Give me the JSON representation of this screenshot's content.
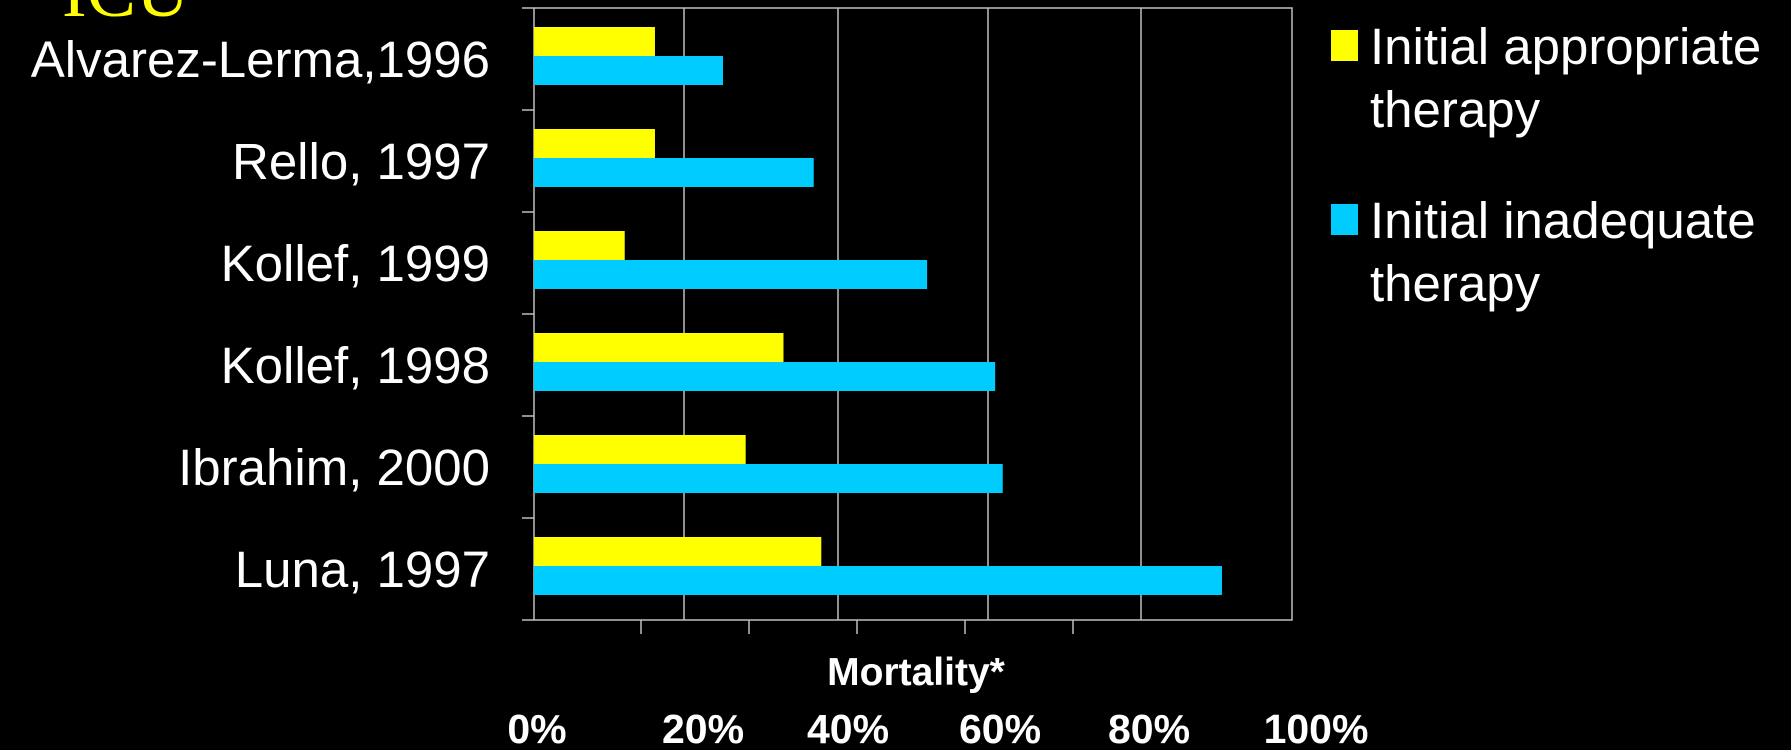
{
  "slide": {
    "title_fragment": "ICU"
  },
  "chart_data": {
    "type": "bar",
    "orientation": "horizontal",
    "categories": [
      "Alvarez-Lerma,1996",
      "Rello, 1997",
      "Kollef, 1999",
      "Kollef, 1998",
      "Ibrahim, 2000",
      "Luna, 1997"
    ],
    "series": [
      {
        "name": "Initial appropriate therapy",
        "color": "#ffff00",
        "values": [
          16,
          16,
          12,
          33,
          28,
          38
        ]
      },
      {
        "name": "Initial inadequate therapy",
        "color": "#00ccff",
        "values": [
          25,
          37,
          52,
          61,
          62,
          91
        ]
      }
    ],
    "xlabel": "Mortality*",
    "xlim": [
      0,
      100
    ],
    "xticks": [
      0,
      20,
      40,
      60,
      80,
      100
    ],
    "xtick_labels": [
      "0%",
      "20%",
      "40%",
      "60%",
      "80%",
      "100%"
    ],
    "grid": true,
    "legend_position": "right"
  }
}
